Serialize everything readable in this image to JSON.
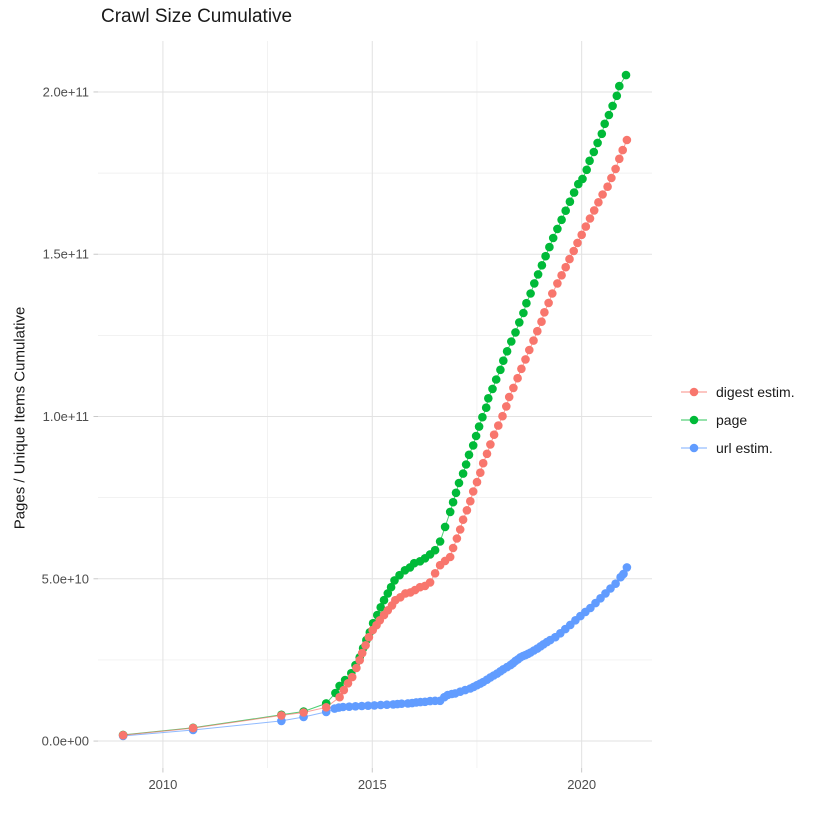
{
  "chart_data": {
    "type": "scatter",
    "title": "Crawl Size Cumulative",
    "xlabel": "",
    "ylabel": "Pages / Unique Items Cumulative",
    "grid": true,
    "legend_position": "right",
    "x_axis": {
      "domain": [
        2008.45,
        2021.68
      ],
      "ticks": [
        {
          "value": 2010,
          "label": "2010"
        },
        {
          "value": 2015,
          "label": "2015"
        },
        {
          "value": 2020,
          "label": "2020"
        }
      ],
      "minor_ticks": [
        2012.5,
        2017.5
      ]
    },
    "y_axis": {
      "domain": [
        -8300000000.0,
        215700000000.0
      ],
      "ticks": [
        {
          "value": 0,
          "label": "0.0e+00"
        },
        {
          "value": 50000000000.0,
          "label": "5.0e+10"
        },
        {
          "value": 100000000000.0,
          "label": "1.0e+11"
        },
        {
          "value": 150000000000.0,
          "label": "1.5e+11"
        },
        {
          "value": 200000000000.0,
          "label": "2.0e+11"
        }
      ],
      "minor_ticks": [
        25000000000.0,
        75000000000.0,
        125000000000.0,
        175000000000.0
      ]
    },
    "legend": [
      {
        "label": "digest estim.",
        "color": "#F8766D"
      },
      {
        "label": "page",
        "color": "#00BA38"
      },
      {
        "label": "url estim.",
        "color": "#619CFF"
      }
    ],
    "series": [
      {
        "name": "url estim.",
        "slug": "url-estim",
        "color": "#619CFF",
        "points": [
          [
            2009.05,
            1600000000.0
          ],
          [
            2010.72,
            3400000000.0
          ],
          [
            2012.83,
            6200000000.0
          ],
          [
            2013.36,
            7400000000.0
          ],
          [
            2013.9,
            9000000000.0
          ],
          [
            2014.1,
            10000000000.0
          ],
          [
            2014.2,
            10300000000.0
          ],
          [
            2014.3,
            10500000000.0
          ],
          [
            2014.45,
            10600000000.0
          ],
          [
            2014.6,
            10700000000.0
          ],
          [
            2014.75,
            10800000000.0
          ],
          [
            2014.9,
            10900000000.0
          ],
          [
            2015.05,
            11000000000.0
          ],
          [
            2015.2,
            11100000000.0
          ],
          [
            2015.35,
            11200000000.0
          ],
          [
            2015.5,
            11300000000.0
          ],
          [
            2015.6,
            11400000000.0
          ],
          [
            2015.7,
            11500000000.0
          ],
          [
            2015.85,
            11600000000.0
          ],
          [
            2015.95,
            11700000000.0
          ],
          [
            2016.05,
            11900000000.0
          ],
          [
            2016.15,
            12000000000.0
          ],
          [
            2016.26,
            12100000000.0
          ],
          [
            2016.38,
            12300000000.0
          ],
          [
            2016.5,
            12400000000.0
          ],
          [
            2016.62,
            12400000000.0
          ],
          [
            2016.72,
            13500000000.0
          ],
          [
            2016.8,
            14200000000.0
          ],
          [
            2016.9,
            14500000000.0
          ],
          [
            2016.98,
            14700000000.0
          ],
          [
            2017.1,
            15200000000.0
          ],
          [
            2017.22,
            15700000000.0
          ],
          [
            2017.34,
            16200000000.0
          ],
          [
            2017.42,
            16700000000.0
          ],
          [
            2017.5,
            17200000000.0
          ],
          [
            2017.58,
            17700000000.0
          ],
          [
            2017.65,
            18200000000.0
          ],
          [
            2017.74,
            18900000000.0
          ],
          [
            2017.82,
            19600000000.0
          ],
          [
            2017.9,
            20200000000.0
          ],
          [
            2017.98,
            20800000000.0
          ],
          [
            2018.06,
            21500000000.0
          ],
          [
            2018.13,
            22100000000.0
          ],
          [
            2018.22,
            22800000000.0
          ],
          [
            2018.3,
            23400000000.0
          ],
          [
            2018.36,
            24000000000.0
          ],
          [
            2018.42,
            24700000000.0
          ],
          [
            2018.48,
            25200000000.0
          ],
          [
            2018.54,
            25800000000.0
          ],
          [
            2018.6,
            26200000000.0
          ],
          [
            2018.66,
            26500000000.0
          ],
          [
            2018.72,
            26900000000.0
          ],
          [
            2018.78,
            27300000000.0
          ],
          [
            2018.86,
            27900000000.0
          ],
          [
            2018.94,
            28500000000.0
          ],
          [
            2019.02,
            29200000000.0
          ],
          [
            2019.09,
            29800000000.0
          ],
          [
            2019.17,
            30500000000.0
          ],
          [
            2019.25,
            31100000000.0
          ],
          [
            2019.37,
            32000000000.0
          ],
          [
            2019.49,
            33200000000.0
          ],
          [
            2019.61,
            34500000000.0
          ],
          [
            2019.73,
            35800000000.0
          ],
          [
            2019.85,
            37200000000.0
          ],
          [
            2019.97,
            38500000000.0
          ],
          [
            2020.09,
            39800000000.0
          ],
          [
            2020.21,
            41000000000.0
          ],
          [
            2020.33,
            42500000000.0
          ],
          [
            2020.45,
            44000000000.0
          ],
          [
            2020.57,
            45500000000.0
          ],
          [
            2020.69,
            47000000000.0
          ],
          [
            2020.81,
            48500000000.0
          ],
          [
            2020.93,
            50500000000.0
          ],
          [
            2021.0,
            51500000000.0
          ],
          [
            2021.08,
            53500000000.0
          ]
        ]
      },
      {
        "name": "page",
        "slug": "page",
        "color": "#00BA38",
        "points": [
          [
            2009.05,
            1900000000.0
          ],
          [
            2010.72,
            4100000000.0
          ],
          [
            2012.83,
            8100000000.0
          ],
          [
            2013.36,
            9100000000.0
          ],
          [
            2013.9,
            11600000000.0
          ],
          [
            2014.12,
            14800000000.0
          ],
          [
            2014.22,
            17000000000.0
          ],
          [
            2014.35,
            18800000000.0
          ],
          [
            2014.5,
            20900000000.0
          ],
          [
            2014.6,
            23400000000.0
          ],
          [
            2014.7,
            25800000000.0
          ],
          [
            2014.78,
            28600000000.0
          ],
          [
            2014.86,
            31100000000.0
          ],
          [
            2014.94,
            33500000000.0
          ],
          [
            2015.02,
            36300000000.0
          ],
          [
            2015.12,
            38800000000.0
          ],
          [
            2015.2,
            41200000000.0
          ],
          [
            2015.28,
            43400000000.0
          ],
          [
            2015.37,
            45500000000.0
          ],
          [
            2015.45,
            47400000000.0
          ],
          [
            2015.53,
            49500000000.0
          ],
          [
            2015.65,
            51100000000.0
          ],
          [
            2015.78,
            52600000000.0
          ],
          [
            2015.9,
            53500000000.0
          ],
          [
            2016.0,
            54800000000.0
          ],
          [
            2016.14,
            55400000000.0
          ],
          [
            2016.26,
            56300000000.0
          ],
          [
            2016.38,
            57500000000.0
          ],
          [
            2016.5,
            58800000000.0
          ],
          [
            2016.62,
            61500000000.0
          ],
          [
            2016.74,
            66000000000.0
          ],
          [
            2016.86,
            70600000000.0
          ],
          [
            2016.93,
            73600000000.0
          ],
          [
            2017.0,
            76500000000.0
          ],
          [
            2017.07,
            79500000000.0
          ],
          [
            2017.17,
            82400000000.0
          ],
          [
            2017.24,
            85200000000.0
          ],
          [
            2017.31,
            88200000000.0
          ],
          [
            2017.41,
            91100000000.0
          ],
          [
            2017.48,
            94000000000.0
          ],
          [
            2017.55,
            96900000000.0
          ],
          [
            2017.63,
            99800000000.0
          ],
          [
            2017.72,
            102700000000.0
          ],
          [
            2017.77,
            105600000000.0
          ],
          [
            2017.87,
            108500000000.0
          ],
          [
            2017.96,
            111400000000.0
          ],
          [
            2018.06,
            114400000000.0
          ],
          [
            2018.13,
            117200000000.0
          ],
          [
            2018.22,
            120100000000.0
          ],
          [
            2018.32,
            123100000000.0
          ],
          [
            2018.42,
            125900000000.0
          ],
          [
            2018.51,
            129000000000.0
          ],
          [
            2018.61,
            131900000000.0
          ],
          [
            2018.68,
            134900000000.0
          ],
          [
            2018.78,
            137900000000.0
          ],
          [
            2018.87,
            141000000000.0
          ],
          [
            2018.96,
            143800000000.0
          ],
          [
            2019.05,
            146600000000.0
          ],
          [
            2019.14,
            149400000000.0
          ],
          [
            2019.23,
            152200000000.0
          ],
          [
            2019.32,
            155000000000.0
          ],
          [
            2019.42,
            157800000000.0
          ],
          [
            2019.52,
            160600000000.0
          ],
          [
            2019.62,
            163400000000.0
          ],
          [
            2019.72,
            166200000000.0
          ],
          [
            2019.82,
            169000000000.0
          ],
          [
            2019.92,
            171600000000.0
          ],
          [
            2020.02,
            173200000000.0
          ],
          [
            2020.12,
            176000000000.0
          ],
          [
            2020.19,
            178800000000.0
          ],
          [
            2020.29,
            181500000000.0
          ],
          [
            2020.38,
            184300000000.0
          ],
          [
            2020.48,
            187100000000.0
          ],
          [
            2020.55,
            190200000000.0
          ],
          [
            2020.65,
            192900000000.0
          ],
          [
            2020.74,
            195700000000.0
          ],
          [
            2020.84,
            198800000000.0
          ],
          [
            2020.9,
            201800000000.0
          ],
          [
            2021.06,
            205200000000.0
          ]
        ]
      },
      {
        "name": "digest estim.",
        "slug": "digest-estim",
        "color": "#F8766D",
        "points": [
          [
            2009.05,
            1800000000.0
          ],
          [
            2010.72,
            4000000000.0
          ],
          [
            2012.83,
            7900000000.0
          ],
          [
            2013.36,
            8800000000.0
          ],
          [
            2013.9,
            10400000000.0
          ],
          [
            2014.22,
            13500000000.0
          ],
          [
            2014.32,
            15700000000.0
          ],
          [
            2014.42,
            17800000000.0
          ],
          [
            2014.52,
            19700000000.0
          ],
          [
            2014.62,
            22500000000.0
          ],
          [
            2014.7,
            24900000000.0
          ],
          [
            2014.76,
            27100000000.0
          ],
          [
            2014.84,
            29500000000.0
          ],
          [
            2014.92,
            32000000000.0
          ],
          [
            2015.01,
            34200000000.0
          ],
          [
            2015.1,
            35700000000.0
          ],
          [
            2015.18,
            37200000000.0
          ],
          [
            2015.28,
            38800000000.0
          ],
          [
            2015.37,
            40300000000.0
          ],
          [
            2015.47,
            41800000000.0
          ],
          [
            2015.55,
            43400000000.0
          ],
          [
            2015.67,
            44300000000.0
          ],
          [
            2015.79,
            45500000000.0
          ],
          [
            2015.91,
            45800000000.0
          ],
          [
            2016.02,
            46500000000.0
          ],
          [
            2016.14,
            47400000000.0
          ],
          [
            2016.26,
            47800000000.0
          ],
          [
            2016.38,
            48900000000.0
          ],
          [
            2016.5,
            51700000000.0
          ],
          [
            2016.62,
            54200000000.0
          ],
          [
            2016.74,
            55500000000.0
          ],
          [
            2016.86,
            56700000000.0
          ],
          [
            2016.93,
            59500000000.0
          ],
          [
            2017.02,
            62400000000.0
          ],
          [
            2017.1,
            65200000000.0
          ],
          [
            2017.17,
            68200000000.0
          ],
          [
            2017.26,
            71100000000.0
          ],
          [
            2017.34,
            73900000000.0
          ],
          [
            2017.41,
            76900000000.0
          ],
          [
            2017.5,
            79800000000.0
          ],
          [
            2017.58,
            82700000000.0
          ],
          [
            2017.65,
            85600000000.0
          ],
          [
            2017.74,
            88500000000.0
          ],
          [
            2017.82,
            91400000000.0
          ],
          [
            2017.91,
            94400000000.0
          ],
          [
            2018.01,
            97200000000.0
          ],
          [
            2018.11,
            100100000000.0
          ],
          [
            2018.2,
            103100000000.0
          ],
          [
            2018.27,
            106000000000.0
          ],
          [
            2018.37,
            108800000000.0
          ],
          [
            2018.47,
            111800000000.0
          ],
          [
            2018.56,
            114700000000.0
          ],
          [
            2018.66,
            117600000000.0
          ],
          [
            2018.75,
            120500000000.0
          ],
          [
            2018.85,
            123400000000.0
          ],
          [
            2018.94,
            126300000000.0
          ],
          [
            2019.04,
            129200000000.0
          ],
          [
            2019.11,
            132100000000.0
          ],
          [
            2019.21,
            135000000000.0
          ],
          [
            2019.3,
            137900000000.0
          ],
          [
            2019.42,
            141000000000.0
          ],
          [
            2019.52,
            143500000000.0
          ],
          [
            2019.62,
            146000000000.0
          ],
          [
            2019.71,
            148500000000.0
          ],
          [
            2019.81,
            151000000000.0
          ],
          [
            2019.9,
            153500000000.0
          ],
          [
            2020.0,
            156000000000.0
          ],
          [
            2020.1,
            158500000000.0
          ],
          [
            2020.2,
            161000000000.0
          ],
          [
            2020.3,
            163500000000.0
          ],
          [
            2020.4,
            166000000000.0
          ],
          [
            2020.5,
            168400000000.0
          ],
          [
            2020.62,
            170800000000.0
          ],
          [
            2020.71,
            173500000000.0
          ],
          [
            2020.81,
            176300000000.0
          ],
          [
            2020.9,
            179400000000.0
          ],
          [
            2020.98,
            182100000000.0
          ],
          [
            2021.08,
            185200000000.0
          ]
        ]
      }
    ]
  }
}
